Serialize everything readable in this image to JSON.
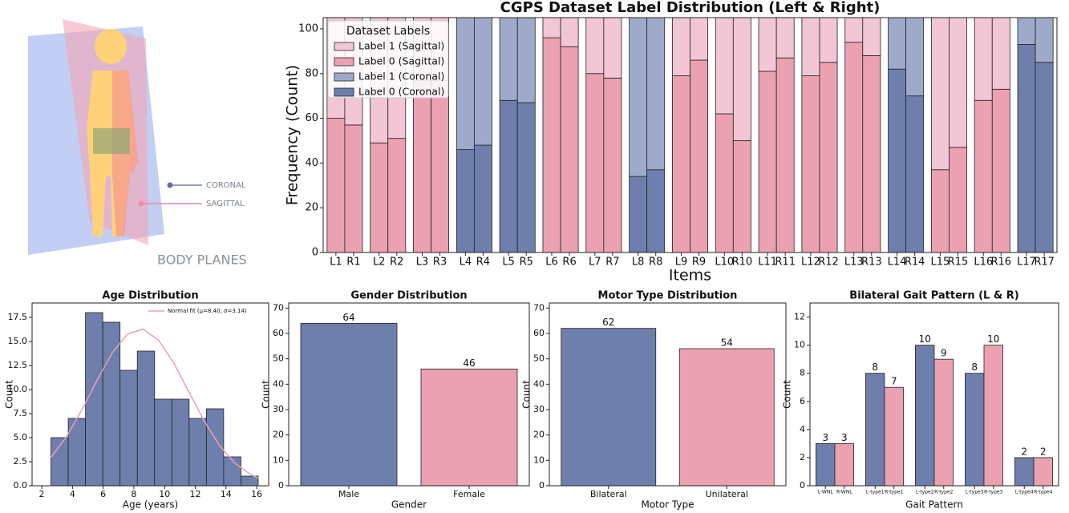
{
  "illustration": {
    "labels": [
      "CORONAL",
      "SAGITTAL"
    ],
    "title": "BODY PLANES"
  },
  "chart_data": [
    {
      "type": "stacked_bar",
      "title": "CGPS Dataset Label Distribution (Left & Right)",
      "xlabel": "Items",
      "ylabel": "Frequency (Count)",
      "categories": [
        "L1",
        "R1",
        "L2",
        "R2",
        "L3",
        "R3",
        "L4",
        "R4",
        "L5",
        "R5",
        "L6",
        "R6",
        "L7",
        "R7",
        "L8",
        "R8",
        "L9",
        "R9",
        "L10",
        "R10",
        "L11",
        "R11",
        "L12",
        "R12",
        "L13",
        "R13",
        "L14",
        "R14",
        "L15",
        "R15",
        "L16",
        "R16",
        "L17",
        "R17"
      ],
      "series": [
        {
          "name": "Label 1 (Sagittal)",
          "color": "#f2c6d4",
          "values": [
            45,
            48,
            56,
            54,
            28,
            28,
            null,
            null,
            null,
            null,
            9,
            13,
            25,
            27,
            null,
            null,
            26,
            19,
            43,
            55,
            24,
            18,
            26,
            20,
            11,
            17,
            null,
            null,
            68,
            58,
            37,
            32,
            null,
            null
          ]
        },
        {
          "name": "Label 0 (Sagittal)",
          "color": "#eba1b2",
          "values": [
            60,
            57,
            49,
            51,
            77,
            77,
            null,
            null,
            null,
            null,
            96,
            92,
            80,
            78,
            null,
            null,
            79,
            86,
            62,
            50,
            81,
            87,
            79,
            85,
            94,
            88,
            null,
            null,
            37,
            47,
            68,
            73,
            null,
            null
          ]
        },
        {
          "name": "Label 1 (Coronal)",
          "color": "#9eaaca",
          "values": [
            null,
            null,
            null,
            null,
            null,
            null,
            59,
            57,
            37,
            38,
            null,
            null,
            null,
            null,
            71,
            68,
            null,
            null,
            null,
            null,
            null,
            null,
            null,
            null,
            null,
            null,
            23,
            35,
            null,
            null,
            null,
            null,
            12,
            20
          ]
        },
        {
          "name": "Label 0 (Coronal)",
          "color": "#6e7fad",
          "values": [
            null,
            null,
            null,
            null,
            null,
            null,
            46,
            48,
            68,
            67,
            null,
            null,
            null,
            null,
            34,
            37,
            null,
            null,
            null,
            null,
            null,
            null,
            null,
            null,
            null,
            null,
            82,
            70,
            null,
            null,
            null,
            null,
            93,
            85
          ]
        }
      ],
      "ylim": [
        0,
        105
      ],
      "yticks": [
        0,
        20,
        40,
        60,
        80,
        100
      ],
      "legend": {
        "title": "Dataset Labels",
        "position": "upper left"
      }
    },
    {
      "type": "histogram",
      "title": "Age Distribution",
      "xlabel": "Age (years)",
      "ylabel": "Count",
      "bins": [
        2.6,
        3.725,
        4.85,
        5.975,
        7.1,
        8.225,
        9.35,
        10.475,
        11.6,
        12.725,
        13.85,
        14.975,
        16.1
      ],
      "values": [
        5,
        7,
        18,
        17,
        12,
        14,
        9,
        9,
        7,
        8,
        3,
        1
      ],
      "color": "#6e7fad",
      "xlim": [
        1.37,
        16.78
      ],
      "xticks": [
        2,
        4,
        6,
        8,
        10,
        12,
        14,
        16
      ],
      "ylim": [
        0,
        19
      ],
      "yticks": [
        {
          "value": 0,
          "label": "0.0"
        },
        {
          "value": 2.5,
          "label": "2.5"
        },
        {
          "value": 5,
          "label": "5.0"
        },
        {
          "value": 7.5,
          "label": "7.5"
        },
        {
          "value": 10,
          "label": "10.0"
        },
        {
          "value": 12.5,
          "label": "12.5"
        },
        {
          "value": 15,
          "label": "15.0"
        },
        {
          "value": 17.5,
          "label": "17.5"
        }
      ],
      "fit": {
        "name": "Normal fit (μ=8.40, σ=3.14)",
        "color": "#eba1b2",
        "x": [
          2.6,
          3.6,
          4.6,
          5.6,
          6.6,
          7.6,
          8.6,
          9.6,
          10.6,
          11.6,
          12.6,
          13.6,
          14.6,
          15.6,
          16.1
        ],
        "values": [
          2.96,
          5.07,
          7.84,
          10.96,
          13.84,
          15.79,
          16.28,
          15.16,
          12.76,
          9.71,
          6.67,
          4.14,
          2.32,
          1.18,
          0.8
        ]
      },
      "legend": {
        "position": "upper right"
      }
    },
    {
      "type": "bar",
      "title": "Gender Distribution",
      "xlabel": "Gender",
      "ylabel": "Count",
      "categories": [
        "Male",
        "Female"
      ],
      "values": [
        64,
        46
      ],
      "colors": [
        "#6e7fad",
        "#eba1b2"
      ],
      "ylim": [
        0,
        72
      ],
      "yticks": [
        0,
        10,
        20,
        30,
        40,
        50,
        60,
        70
      ]
    },
    {
      "type": "bar",
      "title": "Motor Type Distribution",
      "xlabel": "Motor Type",
      "ylabel": "Count",
      "categories": [
        "Bilateral",
        "Unilateral"
      ],
      "values": [
        62,
        54
      ],
      "colors": [
        "#6e7fad",
        "#eba1b2"
      ],
      "ylim": [
        0,
        72
      ],
      "yticks": [
        0,
        10,
        20,
        30,
        40,
        50,
        60,
        70
      ]
    },
    {
      "type": "bar",
      "title": "Bilateral Gait Pattern (L & R)",
      "xlabel": "Gait Pattern",
      "ylabel": "Count",
      "categories": [
        "L-WNL",
        "R-WNL",
        "L-type1",
        "R-type1",
        "L-type2",
        "R-type2",
        "L-type3",
        "R-type3",
        "L-type4",
        "R-type4"
      ],
      "values": [
        3,
        3,
        8,
        7,
        10,
        9,
        8,
        10,
        2,
        2
      ],
      "colors": [
        "#6e7fad",
        "#eba1b2",
        "#6e7fad",
        "#eba1b2",
        "#6e7fad",
        "#eba1b2",
        "#6e7fad",
        "#eba1b2",
        "#6e7fad",
        "#eba1b2"
      ],
      "ylim": [
        0,
        13
      ],
      "yticks": [
        0,
        2,
        4,
        6,
        8,
        10,
        12
      ]
    }
  ]
}
